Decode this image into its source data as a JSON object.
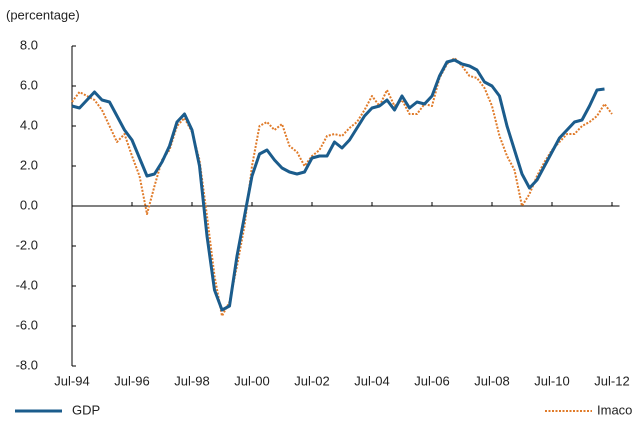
{
  "chart_data": {
    "type": "line",
    "y_label": "(percentage)",
    "x": [
      1994.5,
      1994.75,
      1995,
      1995.25,
      1995.5,
      1995.75,
      1996,
      1996.25,
      1996.5,
      1996.75,
      1997,
      1997.25,
      1997.5,
      1997.75,
      1998,
      1998.25,
      1998.5,
      1998.75,
      1999,
      1999.25,
      1999.5,
      1999.75,
      2000,
      2000.25,
      2000.5,
      2000.75,
      2001,
      2001.25,
      2001.5,
      2001.75,
      2002,
      2002.25,
      2002.5,
      2002.75,
      2003,
      2003.25,
      2003.5,
      2003.75,
      2004,
      2004.25,
      2004.5,
      2004.75,
      2005,
      2005.25,
      2005.5,
      2005.75,
      2006,
      2006.25,
      2006.5,
      2006.75,
      2007,
      2007.25,
      2007.5,
      2007.75,
      2008,
      2008.25,
      2008.5,
      2008.75,
      2009,
      2009.25,
      2009.5,
      2009.75,
      2010,
      2010.25,
      2010.5,
      2010.75,
      2011,
      2011.25,
      2011.5,
      2011.75,
      2012,
      2012.25,
      2012.5
    ],
    "series": [
      {
        "name": "GDP",
        "color": "#1b5c8c",
        "dash": "solid",
        "values": [
          5.0,
          4.9,
          5.3,
          5.7,
          5.3,
          5.2,
          4.5,
          3.8,
          3.3,
          2.4,
          1.5,
          1.6,
          2.2,
          3.0,
          4.2,
          4.6,
          3.8,
          2.0,
          -1.5,
          -4.2,
          -5.2,
          -5.0,
          -2.5,
          -0.5,
          1.5,
          2.6,
          2.8,
          2.3,
          1.9,
          1.7,
          1.6,
          1.7,
          2.4,
          2.5,
          2.5,
          3.2,
          2.9,
          3.3,
          3.9,
          4.5,
          4.9,
          5.0,
          5.3,
          4.8,
          5.5,
          4.9,
          5.2,
          5.1,
          5.5,
          6.5,
          7.2,
          7.3,
          7.1,
          7.0,
          6.8,
          6.2,
          6.0,
          5.5,
          4.0,
          2.8,
          1.6,
          0.9,
          1.3,
          2.0,
          2.7,
          3.4,
          3.8,
          4.2,
          4.3,
          5.0,
          5.8,
          5.85,
          null
        ]
      },
      {
        "name": "Imaco",
        "color": "#e07b2a",
        "dash": "dotted",
        "values": [
          5.2,
          5.7,
          5.5,
          5.3,
          4.8,
          4.0,
          3.2,
          3.6,
          2.5,
          1.5,
          -0.4,
          1.0,
          2.3,
          2.8,
          4.0,
          4.4,
          3.7,
          2.3,
          -0.5,
          -3.5,
          -5.5,
          -4.8,
          -3.0,
          -1.0,
          2.0,
          4.0,
          4.2,
          3.8,
          4.1,
          3.0,
          2.7,
          2.0,
          2.5,
          2.8,
          3.5,
          3.6,
          3.5,
          3.9,
          4.2,
          4.8,
          5.5,
          5.0,
          5.8,
          5.0,
          5.3,
          4.6,
          4.6,
          5.1,
          5.0,
          6.4,
          7.1,
          7.4,
          7.0,
          6.5,
          6.4,
          5.9,
          5.0,
          3.5,
          2.5,
          1.8,
          0.0,
          0.6,
          1.5,
          2.2,
          2.8,
          3.2,
          3.6,
          3.6,
          4.0,
          4.2,
          4.5,
          5.1,
          4.6
        ]
      }
    ],
    "xlim": [
      1994.5,
      2012.75
    ],
    "xticks": [
      {
        "value": 1994.5,
        "label": "Jul-94"
      },
      {
        "value": 1996.5,
        "label": "Jul-96"
      },
      {
        "value": 1998.5,
        "label": "Jul-98"
      },
      {
        "value": 2000.5,
        "label": "Jul-00"
      },
      {
        "value": 2002.5,
        "label": "Jul-02"
      },
      {
        "value": 2004.5,
        "label": "Jul-04"
      },
      {
        "value": 2006.5,
        "label": "Jul-06"
      },
      {
        "value": 2008.5,
        "label": "Jul-08"
      },
      {
        "value": 2010.5,
        "label": "Jul-10"
      },
      {
        "value": 2012.5,
        "label": "Jul-12"
      }
    ],
    "ylim": [
      -8,
      8
    ],
    "yticks": [
      {
        "value": 8,
        "label": "8.0"
      },
      {
        "value": 6,
        "label": "6.0"
      },
      {
        "value": 4,
        "label": "4.0"
      },
      {
        "value": 2,
        "label": "2.0"
      },
      {
        "value": 0,
        "label": "0.0"
      },
      {
        "value": -2,
        "label": "-2.0"
      },
      {
        "value": -4,
        "label": "-4.0"
      },
      {
        "value": -6,
        "label": "-6.0"
      },
      {
        "value": -8,
        "label": "-8.0"
      }
    ],
    "grid": false,
    "legend": "bottom"
  }
}
